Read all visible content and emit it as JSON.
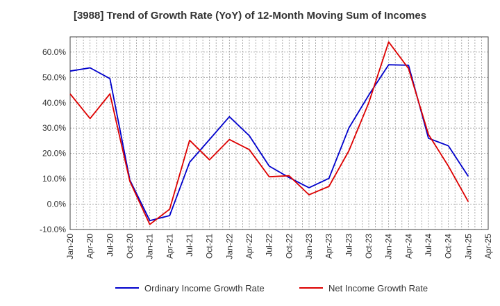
{
  "chart_data": {
    "type": "line",
    "title": "[3988]  Trend of Growth Rate (YoY) of 12-Month Moving Sum of Incomes",
    "xlabel": "",
    "ylabel": "",
    "x_ticks": [
      "Jan-20",
      "Apr-20",
      "Jul-20",
      "Oct-20",
      "Jan-21",
      "Apr-21",
      "Jul-21",
      "Oct-21",
      "Jan-22",
      "Apr-22",
      "Jul-22",
      "Oct-22",
      "Jan-23",
      "Apr-23",
      "Jul-23",
      "Oct-23",
      "Jan-24",
      "Apr-24",
      "Jul-24",
      "Oct-24",
      "Jan-25",
      "Apr-25"
    ],
    "y_ticks": [
      -10,
      0,
      10,
      20,
      30,
      40,
      50,
      60
    ],
    "y_tick_labels": [
      "-10.0%",
      "0.0%",
      "10.0%",
      "20.0%",
      "30.0%",
      "40.0%",
      "50.0%",
      "60.0%"
    ],
    "ylim": [
      -10,
      66
    ],
    "grid": true,
    "legend_position": "bottom",
    "series": [
      {
        "name": "Ordinary Income Growth Rate",
        "color": "#0000cc",
        "values": [
          52.5,
          53.8,
          49.5,
          9.5,
          -6.5,
          -4.5,
          16.5,
          25.5,
          34.5,
          27.0,
          15.0,
          10.5,
          6.5,
          10.2,
          30.0,
          43.0,
          55.0,
          54.8,
          26.0,
          23.0,
          11.0
        ]
      },
      {
        "name": "Net Income Growth Rate",
        "color": "#dd0000",
        "values": [
          43.5,
          33.8,
          43.5,
          9.0,
          -8.0,
          -2.0,
          25.2,
          17.5,
          25.5,
          21.5,
          10.8,
          11.2,
          3.7,
          7.0,
          21.0,
          40.0,
          64.0,
          53.5,
          27.5,
          15.0,
          1.0
        ]
      }
    ]
  }
}
